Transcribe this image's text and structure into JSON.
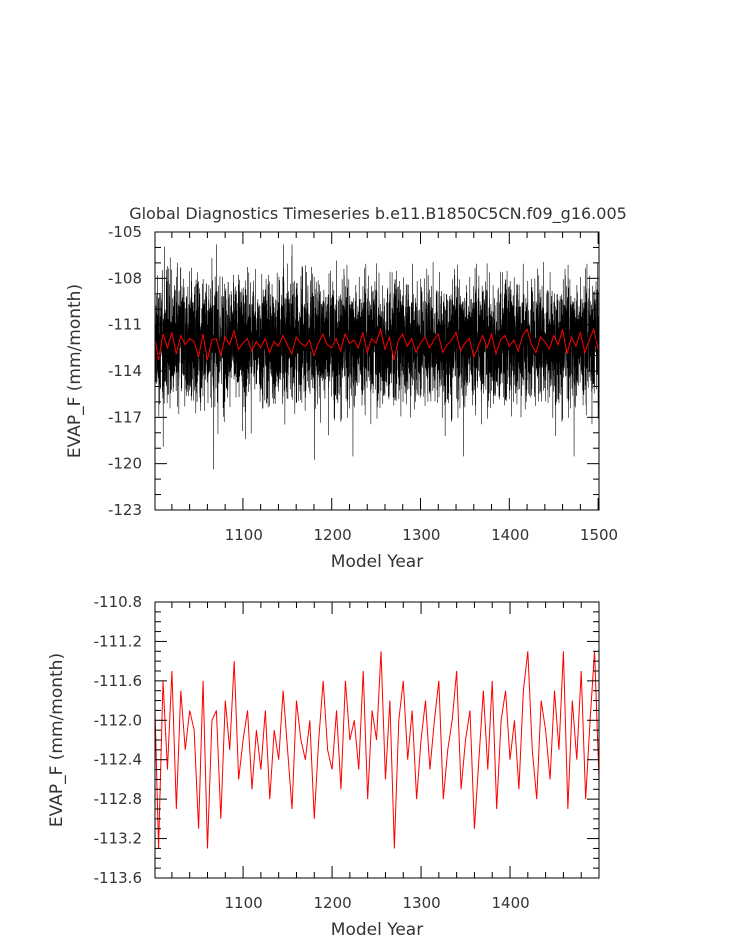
{
  "figure": {
    "title": "Global Diagnostics Timeseries b.e11.B1850C5CN.f09_g16.005"
  },
  "chart_data": [
    {
      "type": "line",
      "xlabel": "Model Year",
      "ylabel": "EVAP_F (mm/month)",
      "xlim": [
        1001,
        1501
      ],
      "ylim": [
        -123,
        -105
      ],
      "xticks": [
        "1100",
        "1200",
        "1300",
        "1400",
        "1500"
      ],
      "yticks": [
        "-105",
        "-108",
        "-111",
        "-114",
        "-117",
        "-120",
        "-123"
      ],
      "series": [
        {
          "role": "monthly",
          "color": "#000000",
          "description_of_values": "monthly values, spanning roughly -120.5 to -106 around a mean near -112"
        },
        {
          "role": "annual-mean",
          "color": "#ff0000"
        }
      ]
    },
    {
      "type": "line",
      "xlabel": "Model Year",
      "ylabel": "EVAP_F (mm/month)",
      "xlim": [
        1001,
        1500
      ],
      "ylim": [
        -113.6,
        -110.8
      ],
      "xticks": [
        "1100",
        "1200",
        "1300",
        "1400"
      ],
      "yticks": [
        "-110.8",
        "-111.2",
        "-111.6",
        "-112.0",
        "-112.4",
        "-112.8",
        "-113.2",
        "-113.6"
      ],
      "series": [
        {
          "role": "annual-mean",
          "color": "#ff0000",
          "x": [
            1001,
            1005,
            1010,
            1015,
            1020,
            1025,
            1030,
            1035,
            1040,
            1045,
            1050,
            1055,
            1060,
            1065,
            1070,
            1075,
            1080,
            1085,
            1090,
            1095,
            1100,
            1105,
            1110,
            1115,
            1120,
            1125,
            1130,
            1135,
            1140,
            1145,
            1150,
            1155,
            1160,
            1165,
            1170,
            1175,
            1180,
            1185,
            1190,
            1195,
            1200,
            1205,
            1210,
            1215,
            1220,
            1225,
            1230,
            1235,
            1240,
            1245,
            1250,
            1255,
            1260,
            1265,
            1270,
            1275,
            1280,
            1285,
            1290,
            1295,
            1300,
            1305,
            1310,
            1315,
            1320,
            1325,
            1330,
            1335,
            1340,
            1345,
            1350,
            1355,
            1360,
            1365,
            1370,
            1375,
            1380,
            1385,
            1390,
            1395,
            1400,
            1405,
            1410,
            1415,
            1420,
            1425,
            1430,
            1435,
            1440,
            1445,
            1450,
            1455,
            1460,
            1465,
            1470,
            1475,
            1480,
            1485,
            1490,
            1495,
            1500
          ],
          "y": [
            -111.9,
            -113.3,
            -111.6,
            -112.5,
            -111.5,
            -112.9,
            -111.7,
            -112.3,
            -111.9,
            -112.1,
            -113.1,
            -111.6,
            -113.3,
            -112.0,
            -111.9,
            -113.0,
            -111.8,
            -112.3,
            -111.4,
            -112.6,
            -112.2,
            -111.9,
            -112.7,
            -112.1,
            -112.5,
            -111.9,
            -112.8,
            -112.1,
            -112.4,
            -111.7,
            -112.3,
            -112.9,
            -111.8,
            -112.2,
            -112.4,
            -112.0,
            -113.0,
            -112.2,
            -111.6,
            -112.3,
            -112.5,
            -111.9,
            -112.7,
            -111.6,
            -112.2,
            -112.0,
            -112.5,
            -111.5,
            -112.8,
            -111.9,
            -112.2,
            -111.3,
            -112.6,
            -111.8,
            -113.3,
            -112.0,
            -111.6,
            -112.4,
            -111.9,
            -112.8,
            -112.2,
            -111.8,
            -112.5,
            -112.0,
            -111.6,
            -112.8,
            -112.3,
            -112.0,
            -111.5,
            -112.7,
            -112.2,
            -111.9,
            -113.1,
            -112.4,
            -111.7,
            -112.5,
            -111.6,
            -112.9,
            -112.0,
            -111.7,
            -112.4,
            -112.0,
            -112.7,
            -111.7,
            -111.3,
            -112.3,
            -112.8,
            -111.8,
            -112.1,
            -112.6,
            -111.7,
            -112.3,
            -111.3,
            -112.9,
            -111.8,
            -112.4,
            -111.5,
            -112.8,
            -112.0,
            -111.3,
            -112.6
          ]
        }
      ]
    }
  ]
}
